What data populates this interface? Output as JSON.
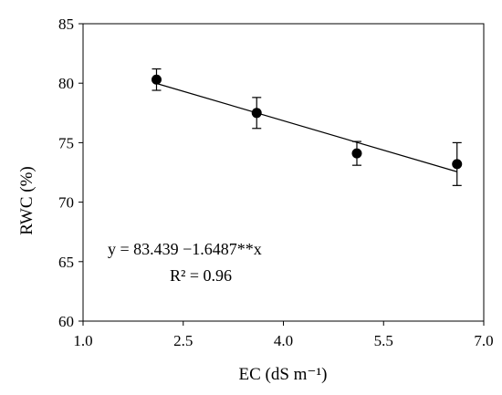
{
  "chart_data": {
    "type": "scatter",
    "title": "",
    "xlabel": "EC (dS m⁻¹)",
    "ylabel": "RWC (%)",
    "xlim": [
      1.0,
      7.0
    ],
    "ylim": [
      60,
      85
    ],
    "xticks": [
      1.0,
      2.5,
      4.0,
      5.5,
      7.0
    ],
    "xtick_labels": [
      "1.0",
      "2.5",
      "4.0",
      "5.5",
      "7.0"
    ],
    "yticks": [
      60,
      65,
      70,
      75,
      80,
      85
    ],
    "ytick_labels": [
      "60",
      "65",
      "70",
      "75",
      "80",
      "85"
    ],
    "grid": false,
    "legend": "none",
    "series": [
      {
        "x": [
          2.1,
          3.6,
          5.1,
          6.6
        ],
        "y": [
          80.3,
          77.5,
          74.1,
          73.2
        ],
        "error": [
          0.9,
          1.3,
          1.0,
          1.8
        ]
      }
    ],
    "trendline": {
      "intercept": 83.439,
      "slope": -1.6487
    },
    "annotations": {
      "equation": "y =  83.439  −1.6487**x",
      "r_squared": "R² = 0.96"
    }
  }
}
